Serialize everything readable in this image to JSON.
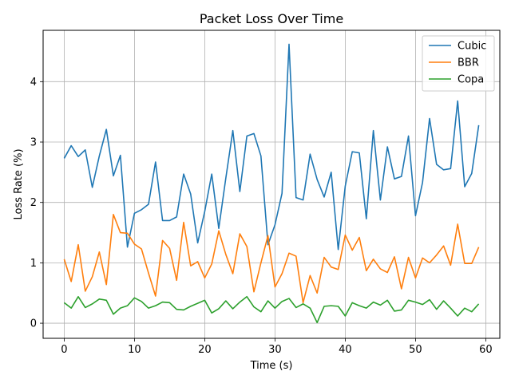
{
  "chart_data": {
    "type": "line",
    "title": "Packet Loss Over Time",
    "xlabel": "Time (s)",
    "ylabel": "Loss Rate (%)",
    "xlim": [
      -3,
      62
    ],
    "ylim": [
      -0.25,
      4.85
    ],
    "xticks": [
      0,
      10,
      20,
      30,
      40,
      50,
      60
    ],
    "yticks": [
      0,
      1,
      2,
      3,
      4
    ],
    "grid": true,
    "legend_position": "top-right",
    "x": [
      0,
      1,
      2,
      3,
      4,
      5,
      6,
      7,
      8,
      9,
      10,
      11,
      12,
      13,
      14,
      15,
      16,
      17,
      18,
      19,
      20,
      21,
      22,
      23,
      24,
      25,
      26,
      27,
      28,
      29,
      30,
      31,
      32,
      33,
      34,
      35,
      36,
      37,
      38,
      39,
      40,
      41,
      42,
      43,
      44,
      45,
      46,
      47,
      48,
      49,
      50,
      51,
      52,
      53,
      54,
      55,
      56,
      57,
      58,
      59
    ],
    "series": [
      {
        "name": "Cubic",
        "color": "#1f77b4",
        "values": [
          2.73,
          2.94,
          2.76,
          2.87,
          2.25,
          2.77,
          3.21,
          2.44,
          2.78,
          1.26,
          1.82,
          1.88,
          1.97,
          2.67,
          1.7,
          1.7,
          1.76,
          2.47,
          2.14,
          1.33,
          1.85,
          2.47,
          1.57,
          2.4,
          3.19,
          2.18,
          3.1,
          3.14,
          2.77,
          1.3,
          1.63,
          2.15,
          4.62,
          2.08,
          2.04,
          2.8,
          2.38,
          2.09,
          2.5,
          1.22,
          2.27,
          2.84,
          2.82,
          1.73,
          3.19,
          2.04,
          2.92,
          2.39,
          2.43,
          3.1,
          1.78,
          2.33,
          3.39,
          2.63,
          2.54,
          2.56,
          3.68,
          2.26,
          2.48,
          3.28
        ]
      },
      {
        "name": "BBR",
        "color": "#ff7f0e",
        "values": [
          1.06,
          0.69,
          1.3,
          0.53,
          0.77,
          1.18,
          0.64,
          1.8,
          1.5,
          1.49,
          1.31,
          1.23,
          0.83,
          0.45,
          1.37,
          1.24,
          0.71,
          1.67,
          0.95,
          1.02,
          0.75,
          0.98,
          1.53,
          1.14,
          0.82,
          1.48,
          1.27,
          0.52,
          1.0,
          1.45,
          0.6,
          0.82,
          1.16,
          1.11,
          0.34,
          0.79,
          0.5,
          1.09,
          0.93,
          0.89,
          1.46,
          1.21,
          1.42,
          0.87,
          1.06,
          0.9,
          0.84,
          1.1,
          0.57,
          1.09,
          0.75,
          1.08,
          1.0,
          1.13,
          1.28,
          0.96,
          1.64,
          0.99,
          0.99,
          1.26
        ]
      },
      {
        "name": "Copa",
        "color": "#2ca02c",
        "values": [
          0.34,
          0.25,
          0.44,
          0.26,
          0.32,
          0.4,
          0.38,
          0.15,
          0.25,
          0.29,
          0.42,
          0.36,
          0.25,
          0.29,
          0.35,
          0.34,
          0.23,
          0.22,
          0.28,
          0.33,
          0.38,
          0.17,
          0.24,
          0.37,
          0.24,
          0.35,
          0.44,
          0.27,
          0.19,
          0.37,
          0.25,
          0.36,
          0.41,
          0.26,
          0.32,
          0.25,
          0.01,
          0.28,
          0.29,
          0.28,
          0.12,
          0.34,
          0.29,
          0.25,
          0.35,
          0.3,
          0.38,
          0.2,
          0.22,
          0.38,
          0.35,
          0.31,
          0.39,
          0.23,
          0.37,
          0.25,
          0.12,
          0.25,
          0.19,
          0.32
        ]
      }
    ]
  }
}
